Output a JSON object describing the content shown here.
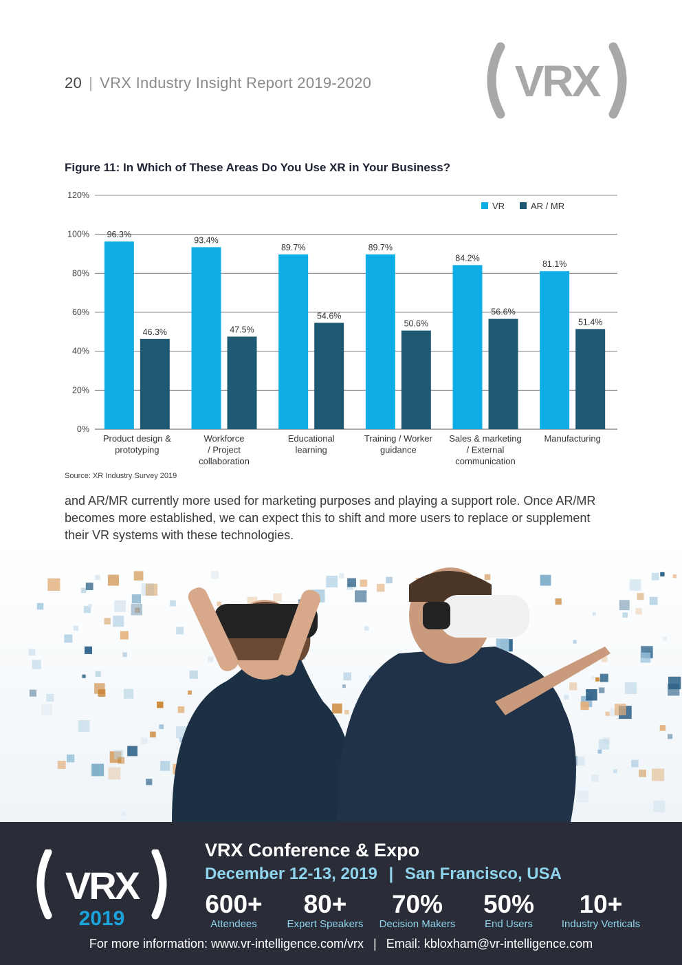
{
  "header": {
    "page_number": "20",
    "separator": "|",
    "report_title": "VRX Industry Insight Report 2019-2020"
  },
  "logo": {
    "text": "VRX"
  },
  "figure": {
    "title": "Figure 11: In Which of These Areas Do You Use XR in Your Business?",
    "source": "Source: XR Industry Survey 2019"
  },
  "chart_data": {
    "type": "bar",
    "title": "Figure 11: In Which of These Areas Do You Use XR in Your Business?",
    "categories": [
      [
        "Product design &",
        "prototyping"
      ],
      [
        "Workforce",
        "/ Project",
        "collaboration"
      ],
      [
        "Educational",
        "learning"
      ],
      [
        "Training / Worker",
        "guidance"
      ],
      [
        "Sales & marketing",
        "/ External",
        "communication"
      ],
      [
        "Manufacturing"
      ]
    ],
    "series": [
      {
        "name": "VR",
        "color": "#0fade6",
        "values": [
          96.3,
          93.4,
          89.7,
          89.7,
          84.2,
          81.1
        ],
        "labels": [
          "96.3%",
          "93.4%",
          "89.7%",
          "89.7%",
          "84.2%",
          "81.1%"
        ]
      },
      {
        "name": "AR / MR",
        "color": "#1f5873",
        "values": [
          46.3,
          47.5,
          54.6,
          50.6,
          56.6,
          51.4
        ],
        "labels": [
          "46.3%",
          "47.5%",
          "54.6%",
          "50.6%",
          "56.6%",
          "51.4%"
        ]
      }
    ],
    "yticks": [
      "0%",
      "20%",
      "40%",
      "60%",
      "80%",
      "100%",
      "120%"
    ],
    "ylim": [
      0,
      120
    ],
    "grid": true,
    "legend": "top-right",
    "xlabel": "",
    "ylabel": ""
  },
  "body_text": "and AR/MR currently more used for marketing purposes and playing a support role. Once AR/MR becomes more established, we can expect this to shift and more users to replace or supplement their VR systems with these technologies.",
  "banner": {
    "logo_text": "VRX",
    "logo_year": "2019",
    "title": "VRX Conference & Expo",
    "date": "December 12-13, 2019",
    "date_sep": "|",
    "location": "San Francisco, USA",
    "stats": [
      {
        "value": "600+",
        "label": "Attendees"
      },
      {
        "value": "80+",
        "label": "Expert Speakers"
      },
      {
        "value": "70%",
        "label": "Decision Makers"
      },
      {
        "value": "50%",
        "label": "End Users"
      },
      {
        "value": "10+",
        "label": "Industry Verticals"
      }
    ],
    "contact_web": "For more information: www.vr-intelligence.com/vrx",
    "contact_sep": "|",
    "contact_email": "Email: kbloxham@vr-intelligence.com"
  },
  "colors": {
    "vr": "#0fade6",
    "ar_mr": "#1f5873",
    "banner_bg": "#2a2d37",
    "banner_accent": "#8fd3ec"
  }
}
